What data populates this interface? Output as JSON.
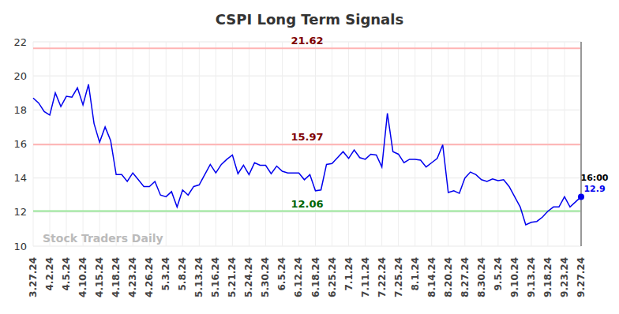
{
  "chart_data": {
    "type": "line",
    "title": "CSPI Long Term Signals",
    "watermark": "Stock Traders Daily",
    "annotations": [
      "16:00"
    ],
    "categories": [
      "3.27.24",
      null,
      null,
      "4.2.24",
      null,
      null,
      "4.5.24",
      null,
      null,
      "4.10.24",
      null,
      null,
      "4.15.24",
      null,
      null,
      "4.18.24",
      null,
      null,
      "4.23.24",
      null,
      null,
      "4.26.24",
      null,
      null,
      "5.3.24",
      null,
      null,
      "5.8.24",
      null,
      null,
      "5.13.24",
      null,
      null,
      "5.16.24",
      null,
      null,
      "5.21.24",
      null,
      null,
      "5.24.24",
      null,
      null,
      "5.30.24",
      null,
      null,
      "6.5.24",
      null,
      null,
      "6.12.24",
      null,
      null,
      "6.18.24",
      null,
      null,
      "6.25.24",
      null,
      null,
      "7.1.24",
      null,
      null,
      "7.11.24",
      null,
      null,
      "7.22.24",
      null,
      null,
      "7.25.24",
      null,
      null,
      "8.1.24",
      null,
      null,
      "8.14.24",
      null,
      null,
      "8.20.24",
      null,
      null,
      "8.27.24",
      null,
      null,
      "8.30.24",
      null,
      null,
      "9.5.24",
      null,
      null,
      "9.10.24",
      null,
      null,
      "9.13.24",
      null,
      null,
      "9.18.24",
      null,
      null,
      "9.23.24",
      null,
      null,
      "9.27.24"
    ],
    "values": [
      18.7,
      18.4,
      17.9,
      17.7,
      19.0,
      18.2,
      18.8,
      18.75,
      19.3,
      18.3,
      19.5,
      17.2,
      16.1,
      17.0,
      16.2,
      14.2,
      14.2,
      13.8,
      14.3,
      13.9,
      13.5,
      13.5,
      13.8,
      13.0,
      12.9,
      13.2,
      12.3,
      13.3,
      13.0,
      13.5,
      13.6,
      14.2,
      14.8,
      14.3,
      14.8,
      15.1,
      15.35,
      14.25,
      14.75,
      14.2,
      14.9,
      14.75,
      14.75,
      14.25,
      14.7,
      14.4,
      14.3,
      14.3,
      14.3,
      13.9,
      14.2,
      13.25,
      13.3,
      14.8,
      14.85,
      15.2,
      15.55,
      15.15,
      15.65,
      15.2,
      15.1,
      15.4,
      15.35,
      14.65,
      17.8,
      15.55,
      15.4,
      14.9,
      15.1,
      15.1,
      15.05,
      14.65,
      14.9,
      15.15,
      15.95,
      13.15,
      13.25,
      13.1,
      14.0,
      14.35,
      14.2,
      13.9,
      13.8,
      13.95,
      13.85,
      13.9,
      13.5,
      12.9,
      12.3,
      11.25,
      11.4,
      11.45,
      11.7,
      12.05,
      12.3,
      12.3,
      12.9,
      12.3,
      12.6,
      12.9
    ],
    "color": "#0000ee",
    "reference_lines": [
      {
        "value": 21.62,
        "color": "#ffb3b3"
      },
      {
        "value": 15.97,
        "color": "#ffb3b3"
      },
      {
        "value": 12.06,
        "color": "#99e699"
      }
    ],
    "ylim": [
      10,
      22
    ],
    "yticks": [
      10,
      12,
      14,
      16,
      18,
      20,
      22
    ],
    "grid": true
  }
}
